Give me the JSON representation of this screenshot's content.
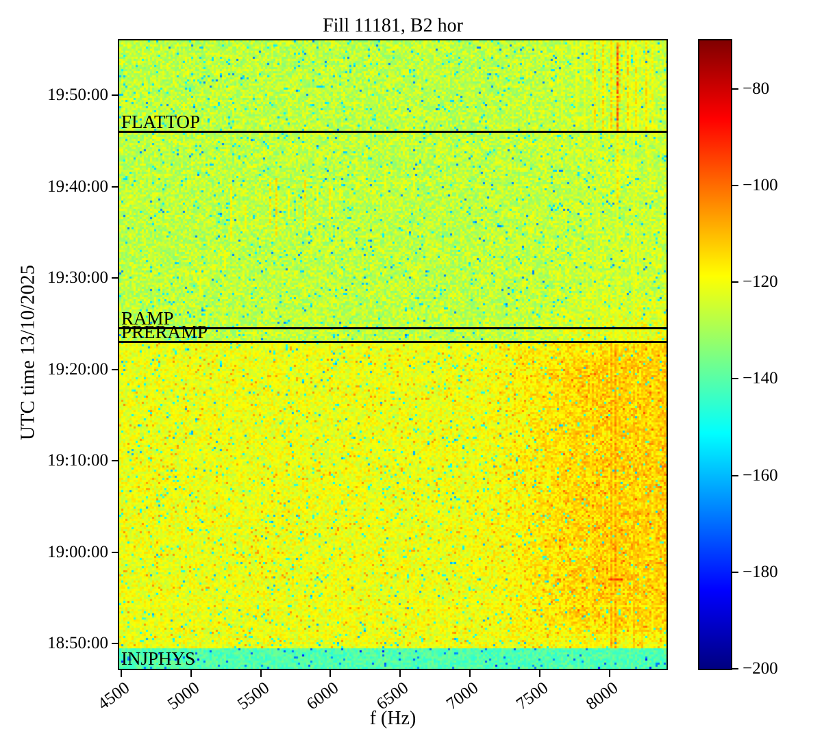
{
  "chart_data": {
    "type": "heatmap",
    "title": "Fill 11181, B2 hor",
    "xlabel": "f (Hz)",
    "ylabel": "UTC time 13/10/2025",
    "x_range_hz": [
      4485,
      8410
    ],
    "x_ticks": [
      4500,
      5000,
      5500,
      6000,
      6500,
      7000,
      7500,
      8000
    ],
    "y_time_range": [
      "18:47:15",
      "19:56:00"
    ],
    "y_ticks_top_to_bottom": [
      "19:50:00",
      "19:40:00",
      "19:30:00",
      "19:20:00",
      "19:10:00",
      "19:00:00",
      "18:50:00"
    ],
    "colorbar": {
      "colormap": "jet",
      "min": -200,
      "max": -70,
      "ticks_top_to_bottom": [
        -80,
        -100,
        -120,
        -140,
        -160,
        -180,
        -200
      ]
    },
    "annotations": [
      {
        "label": "FLATTOP",
        "time": "19:46:00",
        "line": true
      },
      {
        "label": "RAMP",
        "time": "19:24:30",
        "line": true
      },
      {
        "label": "PRERAMP",
        "time": "19:23:00",
        "line": true
      },
      {
        "label": "INJPHYS",
        "time": "18:49:30",
        "line": false
      }
    ],
    "features": {
      "zones": [
        {
          "name": "injection",
          "t_from": "18:47:15",
          "t_to": "18:49:30",
          "base_db": -141,
          "noise_db": 4
        },
        {
          "name": "below-preramp",
          "t_from": "18:49:30",
          "t_to": "19:23:00",
          "base_db": -121,
          "noise_db": 5
        },
        {
          "name": "above-preramp",
          "t_from": "19:23:00",
          "t_to": "19:56:00",
          "base_db": -127,
          "noise_db": 6
        }
      ],
      "haze": [
        {
          "f_from": 7100,
          "f_to": 8410,
          "t_from": "18:51:00",
          "t_to": "19:23:00",
          "max_boost_db": 10,
          "fade": "edges"
        },
        {
          "f_from": 7300,
          "f_to": 8410,
          "t_from": "19:23:00",
          "t_to": "19:29:00",
          "max_boost_db": 9,
          "fade": "up"
        }
      ],
      "streaks": [
        {
          "f": 7660,
          "t_from": "19:46:00",
          "t_to": "19:56:00",
          "boost_db": 5
        },
        {
          "f": 7760,
          "t_from": "19:46:00",
          "t_to": "19:56:00",
          "boost_db": 6
        },
        {
          "f": 7830,
          "t_from": "19:46:00",
          "t_to": "19:56:00",
          "boost_db": 7
        },
        {
          "f": 7900,
          "t_from": "19:46:00",
          "t_to": "19:56:00",
          "boost_db": 12
        },
        {
          "f": 7955,
          "t_from": "19:46:00",
          "t_to": "19:56:00",
          "boost_db": 14
        },
        {
          "f": 8018,
          "t_from": "19:46:00",
          "t_to": "19:56:00",
          "boost_db": 15
        },
        {
          "f": 8060,
          "t_from": "19:46:00",
          "t_to": "19:56:00",
          "boost_db": 28
        },
        {
          "f": 8100,
          "t_from": "19:50:00",
          "t_to": "19:56:00",
          "boost_db": 10
        },
        {
          "f": 8135,
          "t_from": "19:46:00",
          "t_to": "19:56:00",
          "boost_db": 13
        },
        {
          "f": 8185,
          "t_from": "19:46:00",
          "t_to": "19:56:00",
          "boost_db": 12
        },
        {
          "f": 8260,
          "t_from": "19:46:00",
          "t_to": "19:56:00",
          "boost_db": 12
        },
        {
          "f": 8310,
          "t_from": "19:46:00",
          "t_to": "19:56:00",
          "boost_db": 9
        },
        {
          "f": 8060,
          "t_from": "19:38:00",
          "t_to": "19:46:00",
          "boost_db": 12
        },
        {
          "f": 8135,
          "t_from": "19:42:00",
          "t_to": "19:46:00",
          "boost_db": 8
        },
        {
          "f": 8060,
          "t_from": "19:23:00",
          "t_to": "19:38:00",
          "boost_db": 5
        },
        {
          "f": 8170,
          "t_from": "19:23:00",
          "t_to": "19:46:00",
          "boost_db": 5
        },
        {
          "f": 7905,
          "t_from": "19:23:00",
          "t_to": "19:46:00",
          "boost_db": 3
        },
        {
          "f": 7870,
          "t_from": "18:49:30",
          "t_to": "19:23:00",
          "boost_db": 6
        },
        {
          "f": 8010,
          "t_from": "18:49:30",
          "t_to": "19:23:00",
          "boost_db": 14
        },
        {
          "f": 8048,
          "t_from": "18:49:30",
          "t_to": "19:23:00",
          "boost_db": 16
        },
        {
          "f": 8170,
          "t_from": "18:49:30",
          "t_to": "19:23:00",
          "boost_db": 11
        },
        {
          "f": 8235,
          "t_from": "18:49:30",
          "t_to": "19:23:00",
          "boost_db": 9
        },
        {
          "f": 8320,
          "t_from": "18:49:30",
          "t_to": "19:23:00",
          "boost_db": 8
        }
      ],
      "dashes": [
        {
          "f": 5060,
          "t_from": "19:28:00",
          "t_to": "19:31:00",
          "boost_db": 8
        },
        {
          "f": 5240,
          "t_from": "19:31:00",
          "t_to": "19:33:00",
          "boost_db": 8
        },
        {
          "f": 5285,
          "t_from": "19:34:30",
          "t_to": "19:40:15",
          "boost_db": 11
        },
        {
          "f": 5390,
          "t_from": "19:35:00",
          "t_to": "19:38:00",
          "boost_db": 9
        },
        {
          "f": 5570,
          "t_from": "19:36:00",
          "t_to": "19:40:30",
          "boost_db": 12
        },
        {
          "f": 5610,
          "t_from": "19:34:30",
          "t_to": "19:40:45",
          "boost_db": 13
        },
        {
          "f": 5700,
          "t_from": "19:36:30",
          "t_to": "19:39:30",
          "boost_db": 9
        },
        {
          "f": 5820,
          "t_from": "19:35:30",
          "t_to": "19:40:30",
          "boost_db": 12
        },
        {
          "f": 5900,
          "t_from": "19:38:00",
          "t_to": "19:40:00",
          "boost_db": 8
        },
        {
          "f": 5990,
          "t_from": "19:36:30",
          "t_to": "19:40:00",
          "boost_db": 10
        },
        {
          "f": 6070,
          "t_from": "19:38:30",
          "t_to": "19:40:30",
          "boost_db": 8
        },
        {
          "f": 6390,
          "t_from": "19:39:00",
          "t_to": "19:41:00",
          "boost_db": 7
        },
        {
          "f": 6600,
          "t_from": "19:39:30",
          "t_to": "19:41:00",
          "boost_db": 7
        }
      ],
      "hot_dashes": [
        {
          "f_from": 8000,
          "f_to": 8095,
          "t": "18:57:00",
          "boost_db": 26
        }
      ],
      "rows": [
        {
          "t": "18:54:10",
          "boost_db": 4
        }
      ]
    }
  }
}
